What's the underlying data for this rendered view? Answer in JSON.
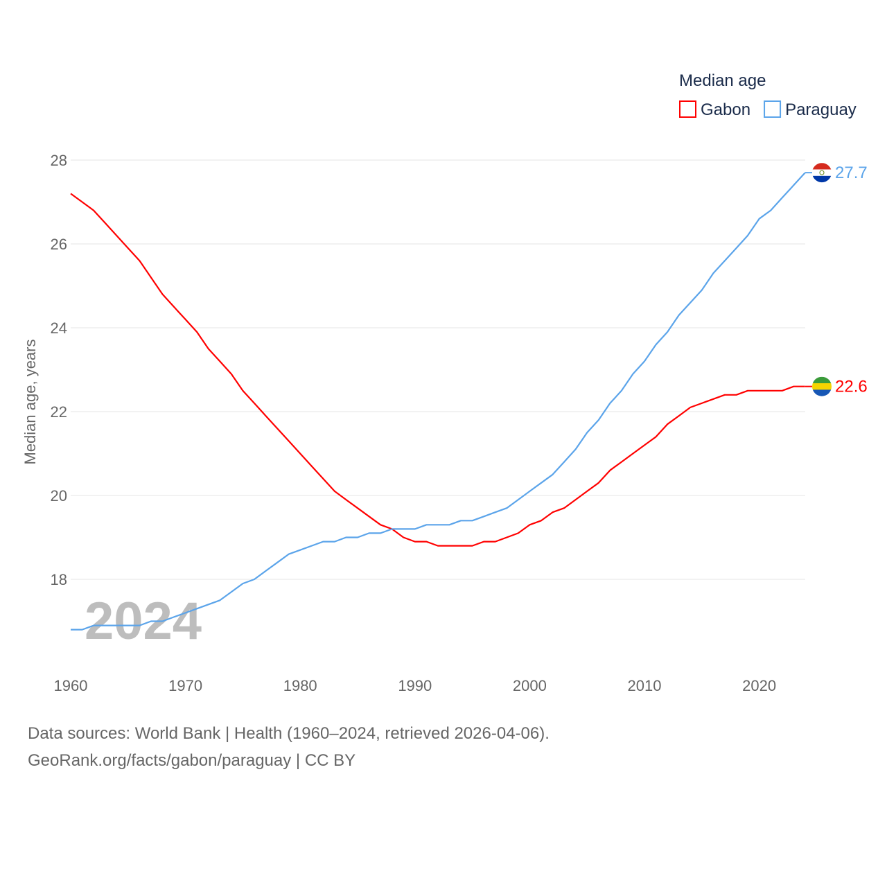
{
  "chart_data": {
    "type": "line",
    "title": "",
    "xlabel": "",
    "ylabel": "Median age, years",
    "ylim": [
      16.1,
      28
    ],
    "xlim": [
      1960,
      2024
    ],
    "grid": true,
    "yticks": [
      18,
      20,
      22,
      24,
      26,
      28
    ],
    "xticks": [
      1960,
      1970,
      1980,
      1990,
      2000,
      2010,
      2020
    ],
    "year_watermark": "2024",
    "legend": {
      "title": "Median age",
      "placement": "top-right"
    },
    "x": [
      1960,
      1961,
      1962,
      1963,
      1964,
      1965,
      1966,
      1967,
      1968,
      1969,
      1970,
      1971,
      1972,
      1973,
      1974,
      1975,
      1976,
      1977,
      1978,
      1979,
      1980,
      1981,
      1982,
      1983,
      1984,
      1985,
      1986,
      1987,
      1988,
      1989,
      1990,
      1991,
      1992,
      1993,
      1994,
      1995,
      1996,
      1997,
      1998,
      1999,
      2000,
      2001,
      2002,
      2003,
      2004,
      2005,
      2006,
      2007,
      2008,
      2009,
      2010,
      2011,
      2012,
      2013,
      2014,
      2015,
      2016,
      2017,
      2018,
      2019,
      2020,
      2021,
      2022,
      2023,
      2024
    ],
    "series": [
      {
        "name": "Gabon",
        "color": "#ff0000",
        "end_label": "22.6",
        "values": [
          27.2,
          27.0,
          26.8,
          26.5,
          26.2,
          25.9,
          25.6,
          25.2,
          24.8,
          24.5,
          24.2,
          23.9,
          23.5,
          23.2,
          22.9,
          22.5,
          22.2,
          21.9,
          21.6,
          21.3,
          21.0,
          20.7,
          20.4,
          20.1,
          19.9,
          19.7,
          19.5,
          19.3,
          19.2,
          19.0,
          18.9,
          18.9,
          18.8,
          18.8,
          18.8,
          18.8,
          18.9,
          18.9,
          19.0,
          19.1,
          19.3,
          19.4,
          19.6,
          19.7,
          19.9,
          20.1,
          20.3,
          20.6,
          20.8,
          21.0,
          21.2,
          21.4,
          21.7,
          21.9,
          22.1,
          22.2,
          22.3,
          22.4,
          22.4,
          22.5,
          22.5,
          22.5,
          22.5,
          22.6,
          22.6
        ]
      },
      {
        "name": "Paraguay",
        "color": "#5ba4ea",
        "end_label": "27.7",
        "values": [
          16.8,
          16.8,
          16.9,
          16.9,
          16.9,
          16.9,
          16.9,
          17.0,
          17.0,
          17.1,
          17.2,
          17.3,
          17.4,
          17.5,
          17.7,
          17.9,
          18.0,
          18.2,
          18.4,
          18.6,
          18.7,
          18.8,
          18.9,
          18.9,
          19.0,
          19.0,
          19.1,
          19.1,
          19.2,
          19.2,
          19.2,
          19.3,
          19.3,
          19.3,
          19.4,
          19.4,
          19.5,
          19.6,
          19.7,
          19.9,
          20.1,
          20.3,
          20.5,
          20.8,
          21.1,
          21.5,
          21.8,
          22.2,
          22.5,
          22.9,
          23.2,
          23.6,
          23.9,
          24.3,
          24.6,
          24.9,
          25.3,
          25.6,
          25.9,
          26.2,
          26.6,
          26.8,
          27.1,
          27.4,
          27.7
        ]
      }
    ]
  },
  "footer": {
    "line1": "Data sources: World Bank | Health (1960–2024, retrieved 2026-04-06).",
    "line2": "GeoRank.org/facts/gabon/paraguay | CC BY"
  }
}
